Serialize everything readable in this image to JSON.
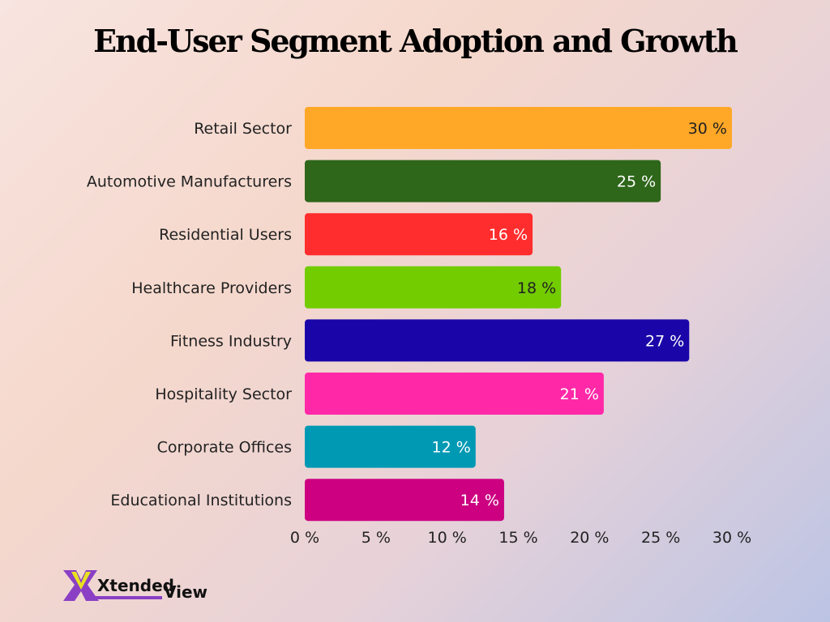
{
  "chart_data": {
    "type": "bar",
    "orientation": "horizontal",
    "title": "End-User Segment Adoption and Growth",
    "categories": [
      "Retail Sector",
      "Automotive Manufacturers",
      "Residential Users",
      "Healthcare Providers",
      "Fitness Industry",
      "Hospitality Sector",
      "Corporate Offices",
      "Educational Institutions"
    ],
    "values": [
      30,
      25,
      16,
      18,
      27,
      21,
      12,
      14
    ],
    "data_labels": [
      "30 %",
      "25 %",
      "16 %",
      "18 %",
      "27 %",
      "21 %",
      "12 %",
      "14 %"
    ],
    "colors": [
      "#ffa726",
      "#2e661a",
      "#ff2d2d",
      "#72cc00",
      "#1a06a8",
      "#ff29a8",
      "#0099b4",
      "#cc0080"
    ],
    "label_colors": [
      "#222222",
      "#ffffff",
      "#ffffff",
      "#222222",
      "#ffffff",
      "#ffffff",
      "#ffffff",
      "#ffffff"
    ],
    "xlim": [
      0,
      30
    ],
    "x_ticks": [
      "0 %",
      "5 %",
      "10 %",
      "15 %",
      "20 %",
      "25 %",
      "30 %"
    ],
    "x_tick_values": [
      0,
      5,
      10,
      15,
      20,
      25,
      30
    ],
    "grid": false,
    "legend": "none"
  },
  "logo": {
    "text_1": "Xtended",
    "text_2": "View"
  }
}
